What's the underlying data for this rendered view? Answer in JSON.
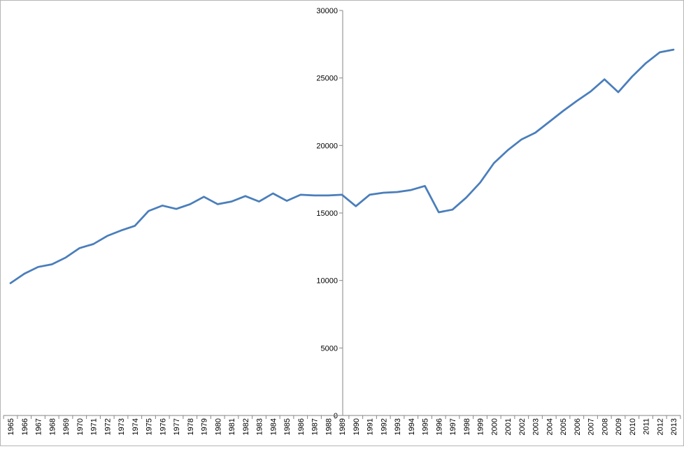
{
  "chart_data": {
    "type": "line",
    "title": "",
    "xlabel": "",
    "ylabel": "",
    "ylim": [
      0,
      30000
    ],
    "yticks": [
      0,
      5000,
      10000,
      15000,
      20000,
      25000,
      30000
    ],
    "grid": false,
    "legend": "none",
    "colors": {
      "line": "#4a7ebb",
      "axis": "#868686"
    },
    "x": [
      "1965",
      "1966",
      "1967",
      "1968",
      "1969",
      "1970",
      "1971",
      "1972",
      "1973",
      "1974",
      "1975",
      "1976",
      "1977",
      "1978",
      "1979",
      "1980",
      "1981",
      "1982",
      "1983",
      "1984",
      "1985",
      "1986",
      "1987",
      "1988",
      "1989",
      "1990",
      "1991",
      "1992",
      "1993",
      "1994",
      "1995",
      "1996",
      "1997",
      "1998",
      "1999",
      "2000",
      "2001",
      "2002",
      "2003",
      "2004",
      "2005",
      "2006",
      "2007",
      "2008",
      "2009",
      "2010",
      "2011",
      "2012",
      "2013"
    ],
    "series": [
      {
        "values": [
          9800,
          10500,
          11000,
          11200,
          11700,
          12400,
          12700,
          13300,
          13700,
          14050,
          15150,
          15550,
          15300,
          15650,
          16200,
          15650,
          15850,
          16250,
          15850,
          16450,
          15900,
          16350,
          16300,
          16300,
          16350,
          15500,
          16350,
          16500,
          16550,
          16700,
          17000,
          15050,
          15250,
          16150,
          17250,
          18700,
          19650,
          20450,
          20950,
          21750,
          22550,
          23300,
          24000,
          24900,
          23950,
          25100,
          26100,
          26900,
          27100
        ]
      }
    ]
  }
}
